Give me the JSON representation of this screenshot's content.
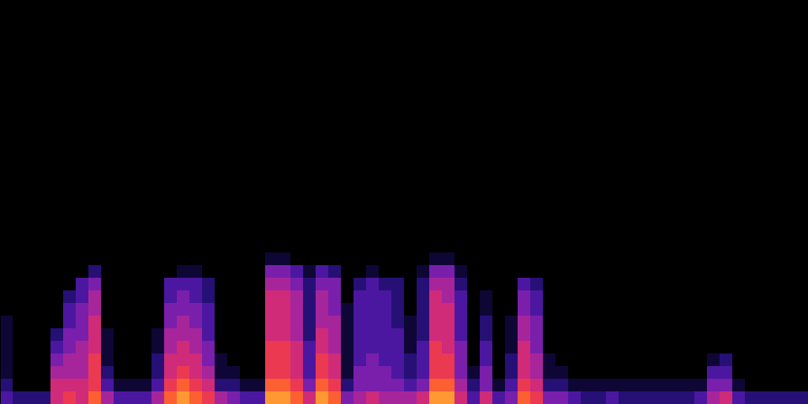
{
  "chart_data": {
    "type": "heatmap",
    "tick_labels": false,
    "xlim": [
      0,
      64
    ],
    "ylim": [
      0,
      32
    ],
    "zlim": [
      0,
      10
    ],
    "cells": [
      [
        3,
        2,
        1,
        1,
        1,
        1,
        1,
        0,
        0,
        0,
        0,
        0
      ],
      [
        2,
        0,
        0,
        0,
        0,
        0,
        0,
        0,
        0,
        0,
        0,
        0
      ],
      [
        2,
        0,
        0,
        0,
        0,
        0,
        0,
        0,
        0,
        0,
        0,
        0
      ],
      [
        2,
        0,
        0,
        0,
        0,
        0,
        0,
        0,
        0,
        0,
        0,
        0
      ],
      [
        6,
        6,
        5,
        4,
        3,
        2,
        0,
        0,
        0,
        0,
        0,
        0
      ],
      [
        7,
        6,
        5,
        5,
        4,
        4,
        3,
        3,
        2,
        0,
        0,
        0
      ],
      [
        6,
        6,
        5,
        5,
        5,
        4,
        4,
        4,
        3,
        3,
        0,
        0
      ],
      [
        8,
        7,
        7,
        7,
        6,
        6,
        6,
        5,
        5,
        4,
        2,
        0
      ],
      [
        5,
        3,
        2,
        1,
        1,
        1,
        0,
        0,
        0,
        0,
        0,
        0
      ],
      [
        3,
        1,
        0,
        0,
        0,
        0,
        0,
        0,
        0,
        0,
        0,
        0
      ],
      [
        3,
        1,
        0,
        0,
        0,
        0,
        0,
        0,
        0,
        0,
        0,
        0
      ],
      [
        3,
        1,
        0,
        0,
        0,
        0,
        0,
        0,
        0,
        0,
        0,
        0
      ],
      [
        5,
        3,
        2,
        2,
        1,
        1,
        0,
        0,
        0,
        0,
        0,
        0
      ],
      [
        8,
        7,
        6,
        6,
        5,
        5,
        4,
        4,
        3,
        3,
        0,
        0
      ],
      [
        9,
        8,
        7,
        6,
        6,
        5,
        5,
        4,
        4,
        3,
        1,
        0
      ],
      [
        8,
        7,
        6,
        6,
        5,
        5,
        4,
        4,
        3,
        3,
        1,
        0
      ],
      [
        7,
        6,
        5,
        4,
        4,
        3,
        3,
        3,
        2,
        2,
        0,
        0
      ],
      [
        5,
        2,
        1,
        1,
        0,
        0,
        0,
        0,
        0,
        0,
        0,
        0
      ],
      [
        4,
        2,
        1,
        0,
        0,
        0,
        0,
        0,
        0,
        0,
        0,
        0
      ],
      [
        3,
        1,
        0,
        0,
        0,
        0,
        0,
        0,
        0,
        0,
        0,
        0
      ],
      [
        3,
        1,
        0,
        0,
        0,
        0,
        0,
        0,
        0,
        0,
        0,
        0
      ],
      [
        9,
        8,
        7,
        7,
        7,
        6,
        6,
        6,
        6,
        5,
        4,
        1
      ],
      [
        9,
        8,
        7,
        7,
        7,
        6,
        6,
        6,
        6,
        5,
        4,
        1
      ],
      [
        8,
        7,
        6,
        6,
        6,
        5,
        5,
        5,
        5,
        4,
        3,
        0
      ],
      [
        6,
        4,
        3,
        3,
        3,
        2,
        2,
        2,
        2,
        2,
        1,
        0
      ],
      [
        9,
        8,
        7,
        7,
        6,
        6,
        5,
        5,
        5,
        4,
        3,
        0
      ],
      [
        8,
        7,
        6,
        6,
        5,
        5,
        5,
        4,
        4,
        4,
        2,
        0
      ],
      [
        4,
        2,
        1,
        1,
        1,
        1,
        1,
        1,
        0,
        0,
        0,
        0
      ],
      [
        5,
        4,
        4,
        3,
        3,
        3,
        3,
        3,
        3,
        2,
        0,
        0
      ],
      [
        6,
        4,
        4,
        4,
        3,
        3,
        3,
        3,
        3,
        3,
        1,
        0
      ],
      [
        5,
        4,
        4,
        3,
        3,
        3,
        3,
        3,
        3,
        2,
        0,
        0
      ],
      [
        5,
        4,
        3,
        3,
        3,
        3,
        2,
        2,
        2,
        2,
        0,
        0
      ],
      [
        5,
        3,
        2,
        2,
        1,
        1,
        1,
        0,
        0,
        0,
        0,
        0
      ],
      [
        6,
        4,
        3,
        3,
        3,
        2,
        2,
        2,
        2,
        2,
        1,
        0
      ],
      [
        9,
        8,
        7,
        7,
        7,
        6,
        6,
        6,
        6,
        5,
        4,
        1
      ],
      [
        9,
        8,
        7,
        7,
        6,
        6,
        6,
        6,
        5,
        5,
        4,
        1
      ],
      [
        6,
        5,
        4,
        4,
        4,
        3,
        3,
        3,
        3,
        2,
        1,
        0
      ],
      [
        3,
        2,
        1,
        0,
        0,
        0,
        0,
        0,
        0,
        0,
        0,
        0
      ],
      [
        6,
        4,
        4,
        3,
        3,
        2,
        2,
        1,
        1,
        0,
        0,
        0
      ],
      [
        3,
        1,
        0,
        0,
        0,
        0,
        0,
        0,
        0,
        0,
        0,
        0
      ],
      [
        4,
        3,
        2,
        2,
        1,
        1,
        1,
        0,
        0,
        0,
        0,
        0
      ],
      [
        8,
        7,
        6,
        6,
        6,
        5,
        5,
        4,
        4,
        3,
        0,
        0
      ],
      [
        7,
        6,
        5,
        5,
        4,
        4,
        4,
        3,
        3,
        2,
        0,
        0
      ],
      [
        4,
        2,
        1,
        1,
        0,
        0,
        0,
        0,
        0,
        0,
        0,
        0
      ],
      [
        4,
        2,
        1,
        0,
        0,
        0,
        0,
        0,
        0,
        0,
        0,
        0
      ],
      [
        3,
        1,
        0,
        0,
        0,
        0,
        0,
        0,
        0,
        0,
        0,
        0
      ],
      [
        2,
        1,
        0,
        0,
        0,
        0,
        0,
        0,
        0,
        0,
        0,
        0
      ],
      [
        2,
        1,
        0,
        0,
        0,
        0,
        0,
        0,
        0,
        0,
        0,
        0
      ],
      [
        3,
        1,
        0,
        0,
        0,
        0,
        0,
        0,
        0,
        0,
        0,
        0
      ],
      [
        2,
        1,
        0,
        0,
        0,
        0,
        0,
        0,
        0,
        0,
        0,
        0
      ],
      [
        2,
        1,
        0,
        0,
        0,
        0,
        0,
        0,
        0,
        0,
        0,
        0
      ],
      [
        2,
        1,
        0,
        0,
        0,
        0,
        0,
        0,
        0,
        0,
        0,
        0
      ],
      [
        2,
        1,
        0,
        0,
        0,
        0,
        0,
        0,
        0,
        0,
        0,
        0
      ],
      [
        2,
        1,
        0,
        0,
        0,
        0,
        0,
        0,
        0,
        0,
        0,
        0
      ],
      [
        2,
        1,
        0,
        0,
        0,
        0,
        0,
        0,
        0,
        0,
        0,
        0
      ],
      [
        3,
        1,
        0,
        0,
        0,
        0,
        0,
        0,
        0,
        0,
        0,
        0
      ],
      [
        5,
        4,
        3,
        1,
        0,
        0,
        0,
        0,
        0,
        0,
        0,
        0
      ],
      [
        6,
        4,
        3,
        2,
        0,
        0,
        0,
        0,
        0,
        0,
        0,
        0
      ],
      [
        3,
        1,
        0,
        0,
        0,
        0,
        0,
        0,
        0,
        0,
        0,
        0
      ],
      [
        2,
        0,
        0,
        0,
        0,
        0,
        0,
        0,
        0,
        0,
        0,
        0
      ],
      [
        2,
        0,
        0,
        0,
        0,
        0,
        0,
        0,
        0,
        0,
        0,
        0
      ],
      [
        2,
        0,
        0,
        0,
        0,
        0,
        0,
        0,
        0,
        0,
        0,
        0
      ],
      [
        2,
        0,
        0,
        0,
        0,
        0,
        0,
        0,
        0,
        0,
        0,
        0
      ],
      [
        2,
        0,
        0,
        0,
        0,
        0,
        0,
        0,
        0,
        0,
        0,
        0
      ]
    ]
  }
}
